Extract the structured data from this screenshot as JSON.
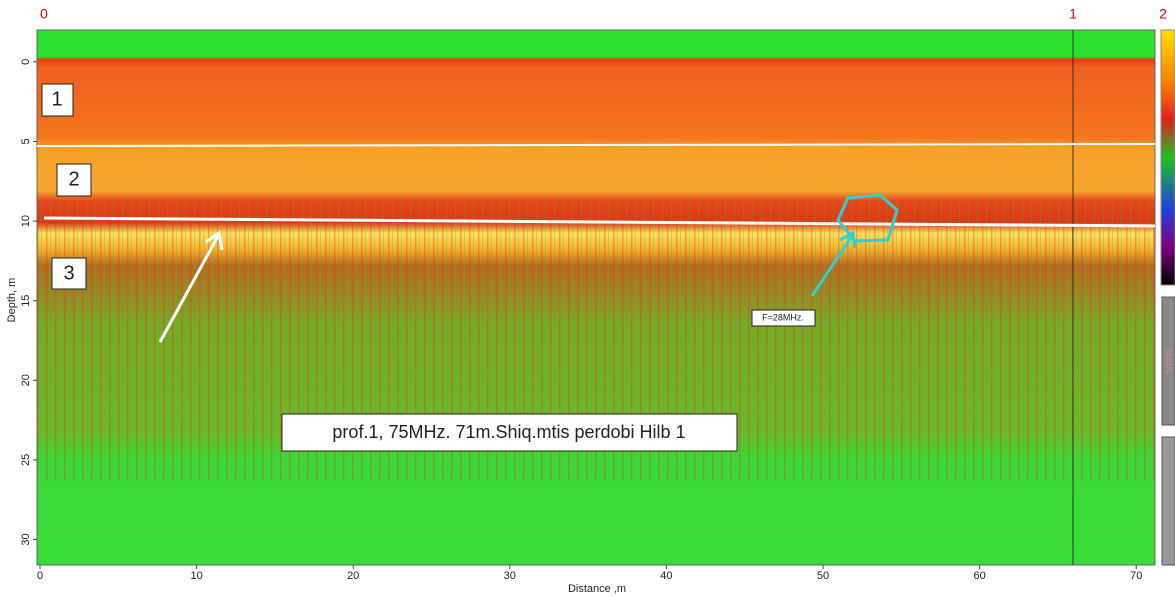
{
  "chart_data": {
    "type": "radargram",
    "x_label": "Distance ,m",
    "y_label": "Depth, m",
    "xlim": [
      0,
      71.2
    ],
    "ylim": [
      -2,
      31.6
    ],
    "xticks": [
      0,
      10,
      20,
      30,
      40,
      50,
      60,
      70
    ],
    "yticks": [
      0,
      5,
      10,
      15,
      20,
      25,
      30
    ],
    "markers": [
      "0",
      "1",
      "2"
    ],
    "layer_labels": [
      "1",
      "2",
      "3"
    ],
    "frequency_note": "F=28MHz.",
    "caption": "prof.1, 75MHz. 71m.Shiq.mtis perdobi Hilb 1",
    "gain_button": "GAIN"
  }
}
